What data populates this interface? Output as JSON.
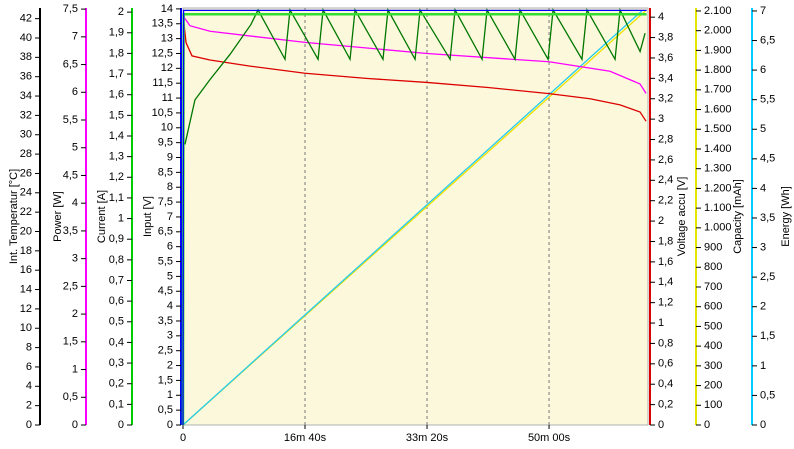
{
  "chart_data": {
    "type": "line",
    "xlim": [
      0,
      3811
    ],
    "xticks": [
      0,
      {
        "value": 1000,
        "label": "16m 40s"
      },
      {
        "value": 2000,
        "label": "33m 20s"
      },
      {
        "value": 3000,
        "label": "50m 00s"
      }
    ],
    "grid": true,
    "axes": [
      {
        "label": "Int. Temperatur [°C]",
        "color": "#000000",
        "side": "left",
        "ylim": [
          0,
          43.1
        ],
        "yticks": [
          0,
          2,
          4,
          6,
          8,
          10,
          12,
          14,
          16,
          18,
          20,
          22,
          24,
          26,
          28,
          30,
          32,
          34,
          36,
          38,
          40,
          42
        ]
      },
      {
        "label": "Power [W]",
        "color": "#ff00ff",
        "side": "left",
        "ylim": [
          0,
          7.52
        ],
        "yticks": [
          0,
          {
            "value": 0.5,
            "label": "0,5"
          },
          1,
          {
            "value": 1.5,
            "label": "1,5"
          },
          2,
          {
            "value": 2.5,
            "label": "2,5"
          },
          3,
          {
            "value": 3.5,
            "label": "3,5"
          },
          4,
          {
            "value": 4.5,
            "label": "4,5"
          },
          5,
          {
            "value": 5.5,
            "label": "5,5"
          },
          6,
          {
            "value": 6.5,
            "label": "6,5"
          },
          7,
          {
            "value": 7.5,
            "label": "7,5"
          }
        ]
      },
      {
        "label": "Current [A]",
        "color": "#00cc00",
        "side": "left",
        "ylim": [
          0,
          2.02
        ],
        "yticks": [
          0,
          {
            "value": 0.1,
            "label": "0,1"
          },
          {
            "value": 0.2,
            "label": "0,2"
          },
          {
            "value": 0.3,
            "label": "0,3"
          },
          {
            "value": 0.4,
            "label": "0,4"
          },
          {
            "value": 0.5,
            "label": "0,5"
          },
          {
            "value": 0.6,
            "label": "0,6"
          },
          {
            "value": 0.7,
            "label": "0,7"
          },
          {
            "value": 0.8,
            "label": "0,8"
          },
          {
            "value": 0.9,
            "label": "0,9"
          },
          1,
          {
            "value": 1.1,
            "label": "1,1"
          },
          {
            "value": 1.2,
            "label": "1,2"
          },
          {
            "value": 1.3,
            "label": "1,3"
          },
          {
            "value": 1.4,
            "label": "1,4"
          },
          {
            "value": 1.5,
            "label": "1,5"
          },
          {
            "value": 1.6,
            "label": "1,6"
          },
          {
            "value": 1.7,
            "label": "1,7"
          },
          {
            "value": 1.8,
            "label": "1,8"
          },
          {
            "value": 1.9,
            "label": "1,9"
          },
          2
        ]
      },
      {
        "label": "Input [V]",
        "color": "#0000ff",
        "side": "left",
        "ylim": [
          0,
          14.03
        ],
        "yticks": [
          0,
          {
            "value": 0.5,
            "label": "0,5"
          },
          1,
          {
            "value": 1.5,
            "label": "1,5"
          },
          2,
          {
            "value": 2.5,
            "label": "2,5"
          },
          3,
          {
            "value": 3.5,
            "label": "3,5"
          },
          4,
          {
            "value": 4.5,
            "label": "4,5"
          },
          5,
          {
            "value": 5.5,
            "label": "5,5"
          },
          6,
          {
            "value": 6.5,
            "label": "6,5"
          },
          7,
          {
            "value": 7.5,
            "label": "7,5"
          },
          8,
          {
            "value": 8.5,
            "label": "8,5"
          },
          9,
          {
            "value": 9.5,
            "label": "9,5"
          },
          10,
          {
            "value": 10.5,
            "label": "10,5"
          },
          11,
          {
            "value": 11.5,
            "label": "11,5"
          },
          12,
          {
            "value": 12.5,
            "label": "12,5"
          },
          13,
          {
            "value": 13.5,
            "label": "13,5"
          },
          14
        ]
      },
      {
        "label": "Voltage accu [V]",
        "color": "#dd0000",
        "side": "right",
        "ylim": [
          0,
          4.09
        ],
        "yticks": [
          0,
          {
            "value": 0.2,
            "label": "0,2"
          },
          {
            "value": 0.4,
            "label": "0,4"
          },
          {
            "value": 0.6,
            "label": "0,6"
          },
          {
            "value": 0.8,
            "label": "0,8"
          },
          1,
          {
            "value": 1.2,
            "label": "1,2"
          },
          {
            "value": 1.4,
            "label": "1,4"
          },
          {
            "value": 1.6,
            "label": "1,6"
          },
          {
            "value": 1.8,
            "label": "1,8"
          },
          2,
          {
            "value": 2.2,
            "label": "2,2"
          },
          {
            "value": 2.4,
            "label": "2,4"
          },
          {
            "value": 2.6,
            "label": "2,6"
          },
          {
            "value": 2.8,
            "label": "2,8"
          },
          3,
          {
            "value": 3.2,
            "label": "3,2"
          },
          {
            "value": 3.4,
            "label": "3,4"
          },
          {
            "value": 3.6,
            "label": "3,6"
          },
          {
            "value": 3.8,
            "label": "3,8"
          },
          4
        ]
      },
      {
        "label": "Capacity [mAh]",
        "color": "#e6e600",
        "side": "right",
        "ylim": [
          0,
          2115
        ],
        "yticks": [
          0,
          100,
          200,
          300,
          400,
          500,
          600,
          700,
          800,
          900,
          {
            "value": 1000,
            "label": "1.000"
          },
          {
            "value": 1100,
            "label": "1.100"
          },
          {
            "value": 1200,
            "label": "1.200"
          },
          {
            "value": 1300,
            "label": "1.300"
          },
          {
            "value": 1400,
            "label": "1.400"
          },
          {
            "value": 1500,
            "label": "1.500"
          },
          {
            "value": 1600,
            "label": "1.600"
          },
          {
            "value": 1700,
            "label": "1.700"
          },
          {
            "value": 1800,
            "label": "1.800"
          },
          {
            "value": 1900,
            "label": "1.900"
          },
          {
            "value": 2000,
            "label": "2.000"
          },
          {
            "value": 2100,
            "label": "2.100"
          }
        ]
      },
      {
        "label": "Energy [Wh]",
        "color": "#00ccff",
        "side": "right",
        "ylim": [
          0,
          7.05
        ],
        "yticks": [
          0,
          {
            "value": 0.5,
            "label": "0,5"
          },
          1,
          {
            "value": 1.5,
            "label": "1,5"
          },
          2,
          {
            "value": 2.5,
            "label": "2,5"
          },
          3,
          {
            "value": 3.5,
            "label": "3,5"
          },
          4,
          {
            "value": 4.5,
            "label": "4,5"
          },
          5,
          {
            "value": 5.5,
            "label": "5,5"
          },
          6,
          {
            "value": 6.5,
            "label": "6,5"
          },
          7
        ]
      }
    ],
    "series": [
      {
        "axis": 5,
        "color": "#f0e000",
        "x": [
          0,
          3790
        ],
        "values": [
          0,
          2100
        ]
      },
      {
        "axis": 6,
        "color": "#22ccee",
        "x": [
          0,
          3760
        ],
        "values": [
          0,
          7
        ]
      },
      {
        "axis": 4,
        "color": "#dd0000",
        "x": [
          0,
          25,
          74,
          221,
          549,
          1000,
          1500,
          2000,
          2500,
          3000,
          3336,
          3582,
          3746,
          3795
        ],
        "values": [
          4.02,
          3.75,
          3.62,
          3.58,
          3.52,
          3.45,
          3.4,
          3.36,
          3.31,
          3.25,
          3.2,
          3.14,
          3.07,
          2.98
        ]
      },
      {
        "axis": 1,
        "color": "#ff00ff",
        "x": [
          0,
          57,
          221,
          1000,
          2000,
          3000,
          3500,
          3746,
          3795
        ],
        "values": [
          7.38,
          7.2,
          7.1,
          6.9,
          6.7,
          6.55,
          6.38,
          6.15,
          5.98
        ]
      },
      {
        "axis": 0,
        "color": "#007700",
        "x": [
          16,
          98,
          221,
          385,
          557,
          615,
          836,
          877,
          1107,
          1148,
          1369,
          1410,
          1639,
          1680,
          1902,
          1943,
          2189,
          2230,
          2451,
          2492,
          2721,
          2762,
          2992,
          3033,
          3270,
          3311,
          3541,
          3582,
          3746,
          3787
        ],
        "values": [
          29,
          33.6,
          35.7,
          38.3,
          41.4,
          42.9,
          37.8,
          42.9,
          37.8,
          42.9,
          37.8,
          42.9,
          37.8,
          42.9,
          37.8,
          42.9,
          37.8,
          42.9,
          37.8,
          42.9,
          37.8,
          42.9,
          37.8,
          42.9,
          37.8,
          42.9,
          37.8,
          42.9,
          38.6,
          40.5
        ]
      },
      {
        "axis": 2,
        "color": "#33dd33",
        "x": [
          0,
          5,
          3800
        ],
        "values": [
          0,
          1.99,
          1.99
        ]
      },
      {
        "axis": 3,
        "color": "#0000ff",
        "x": [
          0,
          5,
          3800
        ],
        "values": [
          0,
          13.95,
          13.95
        ]
      }
    ]
  }
}
